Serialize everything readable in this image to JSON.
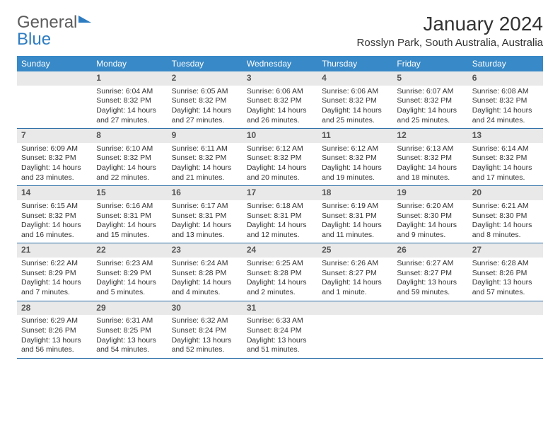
{
  "brand": {
    "part1": "General",
    "part2": "Blue"
  },
  "title": "January 2024",
  "location": "Rosslyn Park, South Australia, Australia",
  "colors": {
    "header_bg": "#3889c7",
    "daynum_bg": "#e9e9e9",
    "week_border": "#2d6fa8",
    "brand_gray": "#5c5c5c",
    "brand_blue": "#2d7cc1"
  },
  "dayNames": [
    "Sunday",
    "Monday",
    "Tuesday",
    "Wednesday",
    "Thursday",
    "Friday",
    "Saturday"
  ],
  "weeks": [
    [
      null,
      {
        "n": "1",
        "sr": "Sunrise: 6:04 AM",
        "ss": "Sunset: 8:32 PM",
        "dl": "Daylight: 14 hours and 27 minutes."
      },
      {
        "n": "2",
        "sr": "Sunrise: 6:05 AM",
        "ss": "Sunset: 8:32 PM",
        "dl": "Daylight: 14 hours and 27 minutes."
      },
      {
        "n": "3",
        "sr": "Sunrise: 6:06 AM",
        "ss": "Sunset: 8:32 PM",
        "dl": "Daylight: 14 hours and 26 minutes."
      },
      {
        "n": "4",
        "sr": "Sunrise: 6:06 AM",
        "ss": "Sunset: 8:32 PM",
        "dl": "Daylight: 14 hours and 25 minutes."
      },
      {
        "n": "5",
        "sr": "Sunrise: 6:07 AM",
        "ss": "Sunset: 8:32 PM",
        "dl": "Daylight: 14 hours and 25 minutes."
      },
      {
        "n": "6",
        "sr": "Sunrise: 6:08 AM",
        "ss": "Sunset: 8:32 PM",
        "dl": "Daylight: 14 hours and 24 minutes."
      }
    ],
    [
      {
        "n": "7",
        "sr": "Sunrise: 6:09 AM",
        "ss": "Sunset: 8:32 PM",
        "dl": "Daylight: 14 hours and 23 minutes."
      },
      {
        "n": "8",
        "sr": "Sunrise: 6:10 AM",
        "ss": "Sunset: 8:32 PM",
        "dl": "Daylight: 14 hours and 22 minutes."
      },
      {
        "n": "9",
        "sr": "Sunrise: 6:11 AM",
        "ss": "Sunset: 8:32 PM",
        "dl": "Daylight: 14 hours and 21 minutes."
      },
      {
        "n": "10",
        "sr": "Sunrise: 6:12 AM",
        "ss": "Sunset: 8:32 PM",
        "dl": "Daylight: 14 hours and 20 minutes."
      },
      {
        "n": "11",
        "sr": "Sunrise: 6:12 AM",
        "ss": "Sunset: 8:32 PM",
        "dl": "Daylight: 14 hours and 19 minutes."
      },
      {
        "n": "12",
        "sr": "Sunrise: 6:13 AM",
        "ss": "Sunset: 8:32 PM",
        "dl": "Daylight: 14 hours and 18 minutes."
      },
      {
        "n": "13",
        "sr": "Sunrise: 6:14 AM",
        "ss": "Sunset: 8:32 PM",
        "dl": "Daylight: 14 hours and 17 minutes."
      }
    ],
    [
      {
        "n": "14",
        "sr": "Sunrise: 6:15 AM",
        "ss": "Sunset: 8:32 PM",
        "dl": "Daylight: 14 hours and 16 minutes."
      },
      {
        "n": "15",
        "sr": "Sunrise: 6:16 AM",
        "ss": "Sunset: 8:31 PM",
        "dl": "Daylight: 14 hours and 15 minutes."
      },
      {
        "n": "16",
        "sr": "Sunrise: 6:17 AM",
        "ss": "Sunset: 8:31 PM",
        "dl": "Daylight: 14 hours and 13 minutes."
      },
      {
        "n": "17",
        "sr": "Sunrise: 6:18 AM",
        "ss": "Sunset: 8:31 PM",
        "dl": "Daylight: 14 hours and 12 minutes."
      },
      {
        "n": "18",
        "sr": "Sunrise: 6:19 AM",
        "ss": "Sunset: 8:31 PM",
        "dl": "Daylight: 14 hours and 11 minutes."
      },
      {
        "n": "19",
        "sr": "Sunrise: 6:20 AM",
        "ss": "Sunset: 8:30 PM",
        "dl": "Daylight: 14 hours and 9 minutes."
      },
      {
        "n": "20",
        "sr": "Sunrise: 6:21 AM",
        "ss": "Sunset: 8:30 PM",
        "dl": "Daylight: 14 hours and 8 minutes."
      }
    ],
    [
      {
        "n": "21",
        "sr": "Sunrise: 6:22 AM",
        "ss": "Sunset: 8:29 PM",
        "dl": "Daylight: 14 hours and 7 minutes."
      },
      {
        "n": "22",
        "sr": "Sunrise: 6:23 AM",
        "ss": "Sunset: 8:29 PM",
        "dl": "Daylight: 14 hours and 5 minutes."
      },
      {
        "n": "23",
        "sr": "Sunrise: 6:24 AM",
        "ss": "Sunset: 8:28 PM",
        "dl": "Daylight: 14 hours and 4 minutes."
      },
      {
        "n": "24",
        "sr": "Sunrise: 6:25 AM",
        "ss": "Sunset: 8:28 PM",
        "dl": "Daylight: 14 hours and 2 minutes."
      },
      {
        "n": "25",
        "sr": "Sunrise: 6:26 AM",
        "ss": "Sunset: 8:27 PM",
        "dl": "Daylight: 14 hours and 1 minute."
      },
      {
        "n": "26",
        "sr": "Sunrise: 6:27 AM",
        "ss": "Sunset: 8:27 PM",
        "dl": "Daylight: 13 hours and 59 minutes."
      },
      {
        "n": "27",
        "sr": "Sunrise: 6:28 AM",
        "ss": "Sunset: 8:26 PM",
        "dl": "Daylight: 13 hours and 57 minutes."
      }
    ],
    [
      {
        "n": "28",
        "sr": "Sunrise: 6:29 AM",
        "ss": "Sunset: 8:26 PM",
        "dl": "Daylight: 13 hours and 56 minutes."
      },
      {
        "n": "29",
        "sr": "Sunrise: 6:31 AM",
        "ss": "Sunset: 8:25 PM",
        "dl": "Daylight: 13 hours and 54 minutes."
      },
      {
        "n": "30",
        "sr": "Sunrise: 6:32 AM",
        "ss": "Sunset: 8:24 PM",
        "dl": "Daylight: 13 hours and 52 minutes."
      },
      {
        "n": "31",
        "sr": "Sunrise: 6:33 AM",
        "ss": "Sunset: 8:24 PM",
        "dl": "Daylight: 13 hours and 51 minutes."
      },
      null,
      null,
      null
    ]
  ]
}
